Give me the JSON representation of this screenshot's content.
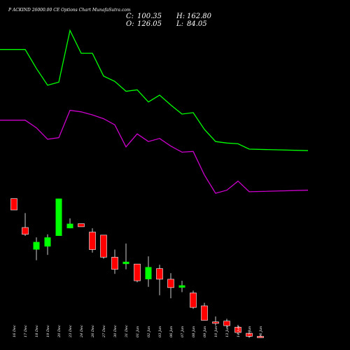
{
  "header": {
    "title": "P          ACKIND 26000.00  CE Options  Chart MunafaSutra.com",
    "close_label": "C:",
    "close_value": "100.35",
    "open_label": "O:",
    "open_value": "126.05",
    "high_label": "H:",
    "high_value": "162.80",
    "low_label": "L:",
    "low_value": "84.05"
  },
  "colors": {
    "background": "#000000",
    "bull": "#00ff00",
    "bear": "#ff0000",
    "ma_fast": "#00ff00",
    "ma_slow": "#cc00cc",
    "wick": "#ffffff"
  },
  "chart_data": {
    "type": "candlestick",
    "dates": [
      "16 Dec",
      "17 Dec",
      "18 Dec",
      "19 Dec",
      "20 Dec",
      "23 Dec",
      "24 Dec",
      "26 Dec",
      "27 Dec",
      "30 Dec",
      "31 Dec",
      "01 Jan",
      "02 Jan",
      "03 Jan",
      "06 Jan",
      "07 Jan",
      "08 Jan",
      "09 Jan",
      "10 Jan",
      "13 Jan",
      "14 Jan",
      "15 Jan",
      "16 Jan"
    ],
    "candles": [
      {
        "open": 239,
        "high": 239,
        "low": 224,
        "close": 224
      },
      {
        "open": 201,
        "high": 220,
        "low": 190,
        "close": 192
      },
      {
        "open": 172,
        "high": 188,
        "low": 158,
        "close": 182
      },
      {
        "open": 176,
        "high": 192,
        "low": 165,
        "close": 188
      },
      {
        "open": 190,
        "high": 239,
        "low": 190,
        "close": 239
      },
      {
        "open": 200,
        "high": 213,
        "low": 200,
        "close": 206
      },
      {
        "open": 206,
        "high": 206,
        "low": 202,
        "close": 202
      },
      {
        "open": 195,
        "high": 200,
        "low": 168,
        "close": 172
      },
      {
        "open": 191,
        "high": 191,
        "low": 160,
        "close": 162
      },
      {
        "open": 162,
        "high": 172,
        "low": 140,
        "close": 146
      },
      {
        "open": 153,
        "high": 180,
        "low": 146,
        "close": 156
      },
      {
        "open": 153,
        "high": 152,
        "low": 129,
        "close": 131
      },
      {
        "open": 133,
        "high": 163,
        "low": 123,
        "close": 149
      },
      {
        "open": 147,
        "high": 152,
        "low": 112,
        "close": 133
      },
      {
        "open": 133,
        "high": 141,
        "low": 108,
        "close": 122
      },
      {
        "open": 122,
        "high": 131,
        "low": 116,
        "close": 125
      },
      {
        "open": 115,
        "high": 118,
        "low": 94,
        "close": 96
      },
      {
        "open": 98,
        "high": 102,
        "low": 79,
        "close": 79
      },
      {
        "open": 77,
        "high": 84,
        "low": 72,
        "close": 75
      },
      {
        "open": 78,
        "high": 81,
        "low": 69,
        "close": 72
      },
      {
        "open": 70,
        "high": 73,
        "low": 62,
        "close": 63
      },
      {
        "open": 62,
        "high": 65,
        "low": 56,
        "close": 58
      },
      {
        "open": 58,
        "high": 60,
        "low": 56,
        "close": 57
      }
    ],
    "ma_fast": [
      435,
      435,
      410,
      388,
      392,
      460,
      430,
      430,
      400,
      393,
      380,
      382,
      366,
      375,
      362,
      350,
      352,
      330,
      314,
      312,
      311,
      304,
      302
    ],
    "ma_slow": [
      342,
      342,
      332,
      317,
      319,
      355,
      353,
      349,
      344,
      336,
      307,
      324,
      314,
      318,
      308,
      300,
      301,
      270,
      246,
      250,
      262,
      248,
      250
    ],
    "price_range": [
      40,
      500
    ],
    "grid": false
  }
}
